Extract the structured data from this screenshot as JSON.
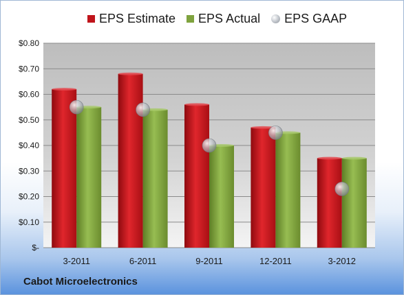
{
  "footer": {
    "company": "Cabot Microelectronics"
  },
  "chart_data": {
    "type": "bar",
    "title": "",
    "xlabel": "",
    "ylabel": "",
    "ylim": [
      0,
      0.8
    ],
    "yticks": [
      {
        "value": 0.8,
        "label": "$0.80"
      },
      {
        "value": 0.7,
        "label": "$0.70"
      },
      {
        "value": 0.6,
        "label": "$0.60"
      },
      {
        "value": 0.5,
        "label": "$0.50"
      },
      {
        "value": 0.4,
        "label": "$0.40"
      },
      {
        "value": 0.3,
        "label": "$0.30"
      },
      {
        "value": 0.2,
        "label": "$0.20"
      },
      {
        "value": 0.1,
        "label": "$0.10"
      },
      {
        "value": 0.0,
        "label": "$-"
      }
    ],
    "categories": [
      "3-2011",
      "6-2011",
      "9-2011",
      "12-2011",
      "3-2012"
    ],
    "grid": true,
    "legend_position": "top",
    "series": [
      {
        "name": "EPS Estimate",
        "kind": "bar",
        "color": "#c0141b",
        "values": [
          0.62,
          0.68,
          0.56,
          0.47,
          0.35
        ]
      },
      {
        "name": "EPS Actual",
        "kind": "bar",
        "color": "#7fa33e",
        "values": [
          0.55,
          0.54,
          0.4,
          0.45,
          0.35
        ]
      },
      {
        "name": "EPS GAAP",
        "kind": "marker",
        "color": "#b9bdc4",
        "values": [
          0.55,
          0.54,
          0.4,
          0.45,
          0.23
        ]
      }
    ]
  }
}
